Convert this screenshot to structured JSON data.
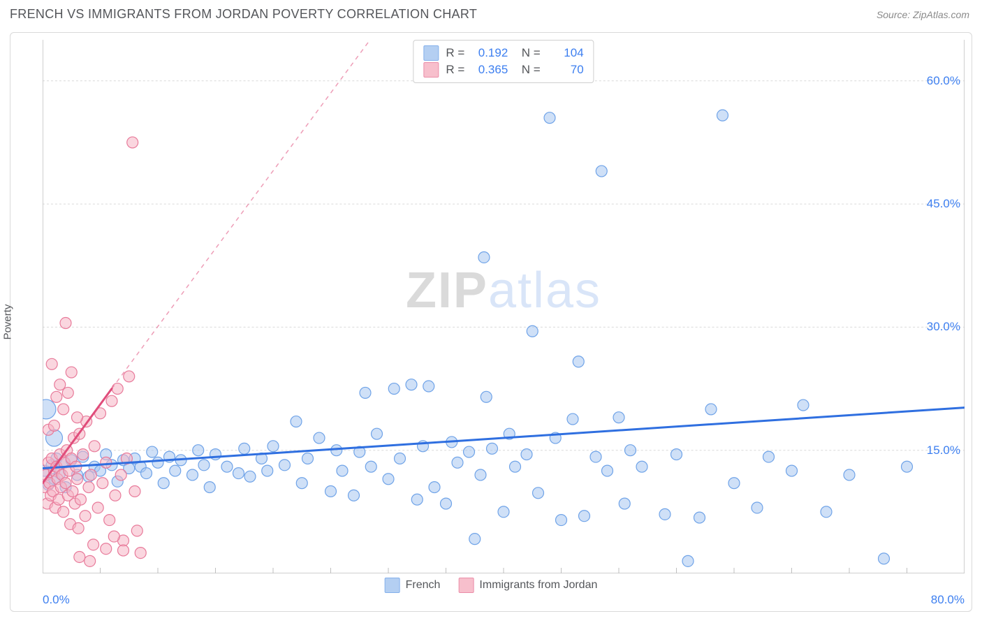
{
  "header": {
    "title": "FRENCH VS IMMIGRANTS FROM JORDAN POVERTY CORRELATION CHART",
    "source": "Source: ZipAtlas.com"
  },
  "ylabel": "Poverty",
  "watermark": {
    "part1": "ZIP",
    "part2": "atlas"
  },
  "chart": {
    "type": "scatter",
    "xlim": [
      0,
      80
    ],
    "ylim": [
      0,
      65
    ],
    "x_axis_labels": [
      {
        "pos": 0,
        "text": "0.0%"
      },
      {
        "pos": 80,
        "text": "80.0%"
      }
    ],
    "y_axis_labels": [
      {
        "pos": 15,
        "text": "15.0%"
      },
      {
        "pos": 30,
        "text": "30.0%"
      },
      {
        "pos": 45,
        "text": "45.0%"
      },
      {
        "pos": 60,
        "text": "60.0%"
      }
    ],
    "x_ticks": [
      0,
      5,
      10,
      15,
      20,
      25,
      30,
      35,
      40,
      45,
      50,
      55,
      60,
      65,
      70,
      75,
      80
    ],
    "y_gridlines": [
      15,
      30,
      45,
      60
    ],
    "background_color": "#ffffff",
    "grid_color": "#d9d9d9",
    "axis_color": "#bfbfbf",
    "series": [
      {
        "name": "French",
        "fill": "#a8c7f0",
        "stroke": "#6fa3e8",
        "fill_opacity": 0.55,
        "marker_r": 8,
        "trend": {
          "x1": 0,
          "y1": 12.8,
          "x2": 80,
          "y2": 20.2,
          "color": "#2f6fe0",
          "width": 3
        },
        "points": [
          [
            0.2,
            12.5
          ],
          [
            0.5,
            10.8
          ],
          [
            0.8,
            13.2
          ],
          [
            1.0,
            11.5
          ],
          [
            1.2,
            14.0
          ],
          [
            1.5,
            12.2
          ],
          [
            1.8,
            13.5
          ],
          [
            2.0,
            10.5
          ],
          [
            2.5,
            13.8
          ],
          [
            3.0,
            12.0
          ],
          [
            3.5,
            14.2
          ],
          [
            4.0,
            11.8
          ],
          [
            4.5,
            13.0
          ],
          [
            5.0,
            12.5
          ],
          [
            5.5,
            14.5
          ],
          [
            6.0,
            13.2
          ],
          [
            6.5,
            11.2
          ],
          [
            7.0,
            13.8
          ],
          [
            7.5,
            12.8
          ],
          [
            8.0,
            14.0
          ],
          [
            8.5,
            13.0
          ],
          [
            9.0,
            12.2
          ],
          [
            9.5,
            14.8
          ],
          [
            10.0,
            13.5
          ],
          [
            10.5,
            11.0
          ],
          [
            11.0,
            14.2
          ],
          [
            11.5,
            12.5
          ],
          [
            12.0,
            13.8
          ],
          [
            13.0,
            12.0
          ],
          [
            13.5,
            15.0
          ],
          [
            14.0,
            13.2
          ],
          [
            14.5,
            10.5
          ],
          [
            15.0,
            14.5
          ],
          [
            16.0,
            13.0
          ],
          [
            17.0,
            12.2
          ],
          [
            17.5,
            15.2
          ],
          [
            18.0,
            11.8
          ],
          [
            19.0,
            14.0
          ],
          [
            19.5,
            12.5
          ],
          [
            20.0,
            15.5
          ],
          [
            21.0,
            13.2
          ],
          [
            22.0,
            18.5
          ],
          [
            22.5,
            11.0
          ],
          [
            23.0,
            14.0
          ],
          [
            24.0,
            16.5
          ],
          [
            25.0,
            10.0
          ],
          [
            25.5,
            15.0
          ],
          [
            26.0,
            12.5
          ],
          [
            27.0,
            9.5
          ],
          [
            27.5,
            14.8
          ],
          [
            28.0,
            22.0
          ],
          [
            28.5,
            13.0
          ],
          [
            29.0,
            17.0
          ],
          [
            30.0,
            11.5
          ],
          [
            30.5,
            22.5
          ],
          [
            31.0,
            14.0
          ],
          [
            32.0,
            23.0
          ],
          [
            32.5,
            9.0
          ],
          [
            33.0,
            15.5
          ],
          [
            33.5,
            22.8
          ],
          [
            34.0,
            10.5
          ],
          [
            35.0,
            8.5
          ],
          [
            35.5,
            16.0
          ],
          [
            36.0,
            13.5
          ],
          [
            37.0,
            14.8
          ],
          [
            37.5,
            4.2
          ],
          [
            38.0,
            12.0
          ],
          [
            38.3,
            38.5
          ],
          [
            38.5,
            21.5
          ],
          [
            39.0,
            15.2
          ],
          [
            40.0,
            7.5
          ],
          [
            40.5,
            17.0
          ],
          [
            41.0,
            13.0
          ],
          [
            42.0,
            14.5
          ],
          [
            42.5,
            29.5
          ],
          [
            43.0,
            9.8
          ],
          [
            44.0,
            55.5
          ],
          [
            44.5,
            16.5
          ],
          [
            45.0,
            6.5
          ],
          [
            46.0,
            18.8
          ],
          [
            46.5,
            25.8
          ],
          [
            47.0,
            7.0
          ],
          [
            48.0,
            14.2
          ],
          [
            48.5,
            49.0
          ],
          [
            49.0,
            12.5
          ],
          [
            50.0,
            19.0
          ],
          [
            50.5,
            8.5
          ],
          [
            51.0,
            15.0
          ],
          [
            52.0,
            13.0
          ],
          [
            54.0,
            7.2
          ],
          [
            55.0,
            14.5
          ],
          [
            56.0,
            1.5
          ],
          [
            57.0,
            6.8
          ],
          [
            58.0,
            20.0
          ],
          [
            59.0,
            55.8
          ],
          [
            60.0,
            11.0
          ],
          [
            62.0,
            8.0
          ],
          [
            63.0,
            14.2
          ],
          [
            65.0,
            12.5
          ],
          [
            66.0,
            20.5
          ],
          [
            68.0,
            7.5
          ],
          [
            70.0,
            12.0
          ],
          [
            73.0,
            1.8
          ],
          [
            75.0,
            13.0
          ]
        ],
        "special_points": [
          {
            "x": 0.3,
            "y": 20.0,
            "r": 14
          },
          {
            "x": 1.0,
            "y": 16.5,
            "r": 12
          }
        ]
      },
      {
        "name": "Immigrants from Jordan",
        "fill": "#f6b4c4",
        "stroke": "#e87a9a",
        "fill_opacity": 0.55,
        "marker_r": 8,
        "trend": {
          "x1": 0,
          "y1": 11.0,
          "x2": 6.0,
          "y2": 22.5,
          "color": "#e04d7b",
          "width": 3,
          "dash_x1": 6.0,
          "dash_y1": 22.5,
          "dash_x2": 30.0,
          "dash_y2": 68.0
        },
        "points": [
          [
            0.2,
            10.5
          ],
          [
            0.3,
            12.0
          ],
          [
            0.4,
            8.5
          ],
          [
            0.5,
            13.5
          ],
          [
            0.6,
            11.0
          ],
          [
            0.7,
            9.5
          ],
          [
            0.8,
            14.0
          ],
          [
            0.9,
            10.0
          ],
          [
            1.0,
            12.5
          ],
          [
            1.1,
            8.0
          ],
          [
            1.2,
            13.0
          ],
          [
            1.3,
            11.5
          ],
          [
            1.4,
            9.0
          ],
          [
            1.5,
            14.5
          ],
          [
            1.6,
            10.5
          ],
          [
            1.7,
            12.0
          ],
          [
            1.8,
            7.5
          ],
          [
            1.9,
            13.5
          ],
          [
            2.0,
            11.0
          ],
          [
            2.1,
            15.0
          ],
          [
            2.2,
            9.5
          ],
          [
            2.3,
            12.5
          ],
          [
            2.4,
            6.0
          ],
          [
            2.5,
            14.0
          ],
          [
            2.6,
            10.0
          ],
          [
            2.7,
            16.5
          ],
          [
            2.8,
            8.5
          ],
          [
            2.9,
            13.0
          ],
          [
            3.0,
            11.5
          ],
          [
            3.1,
            5.5
          ],
          [
            3.2,
            17.0
          ],
          [
            3.3,
            9.0
          ],
          [
            3.5,
            14.5
          ],
          [
            3.7,
            7.0
          ],
          [
            3.8,
            18.5
          ],
          [
            4.0,
            10.5
          ],
          [
            4.2,
            12.0
          ],
          [
            4.4,
            3.5
          ],
          [
            4.5,
            15.5
          ],
          [
            4.8,
            8.0
          ],
          [
            5.0,
            19.5
          ],
          [
            5.2,
            11.0
          ],
          [
            5.5,
            13.5
          ],
          [
            5.8,
            6.5
          ],
          [
            6.0,
            21.0
          ],
          [
            6.3,
            9.5
          ],
          [
            6.5,
            22.5
          ],
          [
            6.8,
            12.0
          ],
          [
            7.0,
            4.0
          ],
          [
            7.3,
            14.0
          ],
          [
            7.5,
            24.0
          ],
          [
            8.0,
            10.0
          ],
          [
            8.5,
            2.5
          ],
          [
            0.8,
            25.5
          ],
          [
            1.2,
            21.5
          ],
          [
            1.5,
            23.0
          ],
          [
            1.8,
            20.0
          ],
          [
            2.2,
            22.0
          ],
          [
            2.5,
            24.5
          ],
          [
            3.0,
            19.0
          ],
          [
            0.5,
            17.5
          ],
          [
            1.0,
            18.0
          ],
          [
            2.0,
            30.5
          ],
          [
            7.8,
            52.5
          ],
          [
            3.2,
            2.0
          ],
          [
            4.1,
            1.5
          ],
          [
            5.5,
            3.0
          ],
          [
            6.2,
            4.5
          ],
          [
            7.0,
            2.8
          ],
          [
            8.2,
            5.2
          ]
        ]
      }
    ]
  },
  "corr_legend": [
    {
      "swatch_fill": "#a8c7f0",
      "swatch_stroke": "#6fa3e8",
      "r": "0.192",
      "n": "104"
    },
    {
      "swatch_fill": "#f6b4c4",
      "swatch_stroke": "#e87a9a",
      "r": "0.365",
      "n": "70"
    }
  ],
  "series_legend": [
    {
      "swatch_fill": "#a8c7f0",
      "swatch_stroke": "#6fa3e8",
      "label": "French"
    },
    {
      "swatch_fill": "#f6b4c4",
      "swatch_stroke": "#e87a9a",
      "label": "Immigrants from Jordan"
    }
  ]
}
